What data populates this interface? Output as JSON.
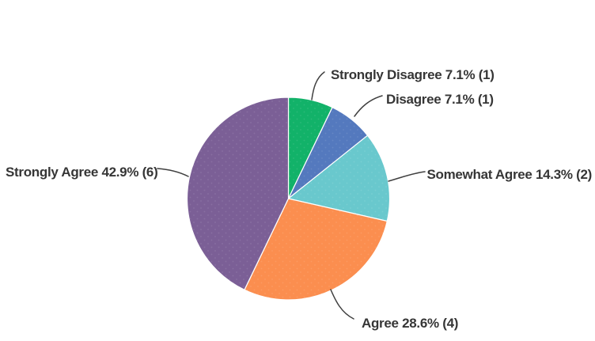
{
  "chart_data": {
    "type": "pie",
    "title": "",
    "categories": [
      "Strongly Disagree",
      "Disagree",
      "Somewhat Agree",
      "Agree",
      "Strongly Agree"
    ],
    "values": [
      1,
      1,
      2,
      4,
      6
    ],
    "percentages": [
      "7.1%",
      "7.1%",
      "14.3%",
      "28.6%",
      "42.9%"
    ],
    "colors": [
      "#12b269",
      "#5479be",
      "#69c8cd",
      "#fb8e4f",
      "#7b5f96"
    ],
    "labels": [
      "Strongly Disagree 7.1% (1)",
      "Disagree 7.1% (1)",
      "Somewhat Agree 14.3% (2)",
      "Agree 28.6% (4)",
      "Strongly Agree 42.9% (6)"
    ],
    "start_angle_deg": 0,
    "direction": "clockwise",
    "legend_position": "outside-callout-labels",
    "label_color": "#363636",
    "background": "#ffffff"
  }
}
